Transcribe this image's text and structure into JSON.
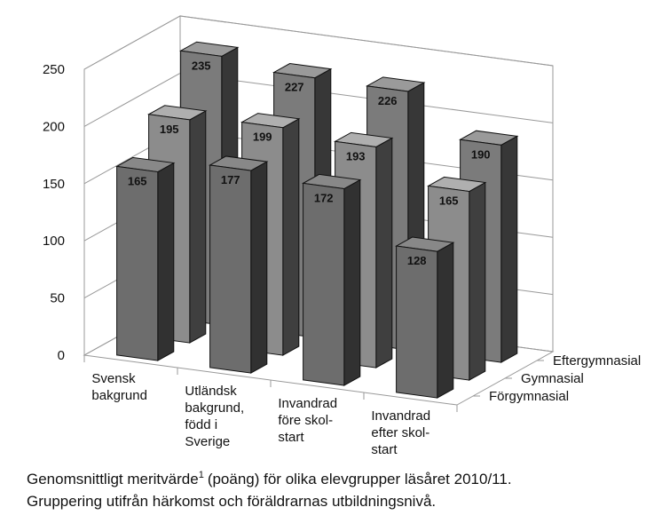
{
  "chart_data": {
    "type": "bar3d",
    "categories": [
      [
        "Svensk",
        "bakgrund"
      ],
      [
        "Utländsk",
        "bakgrund,",
        "född i",
        "Sverige"
      ],
      [
        "Invandrad",
        "före skol-",
        "start"
      ],
      [
        "Invandrad",
        "efter skol-",
        "start"
      ]
    ],
    "series": [
      {
        "name": "Förgymnasial",
        "color": "#6d6d6d",
        "values": [
          165,
          177,
          172,
          128
        ]
      },
      {
        "name": "Gymnasial",
        "color": "#8c8c8c",
        "values": [
          195,
          199,
          193,
          165
        ]
      },
      {
        "name": "Eftergymnasial",
        "color": "#7b7b7b",
        "values": [
          235,
          227,
          226,
          190
        ]
      }
    ],
    "ylim": [
      0,
      250
    ],
    "yticks": [
      0,
      50,
      100,
      150,
      200,
      250
    ],
    "grid": true,
    "caption": {
      "line1": [
        "Genomsnittligt meritvärde",
        "1",
        "(poäng) för olika elevgrupper läsåret 2010/11."
      ],
      "line2": "Gruppering utifrån härkomst och föräldrarnas utbildningsnivå."
    }
  }
}
